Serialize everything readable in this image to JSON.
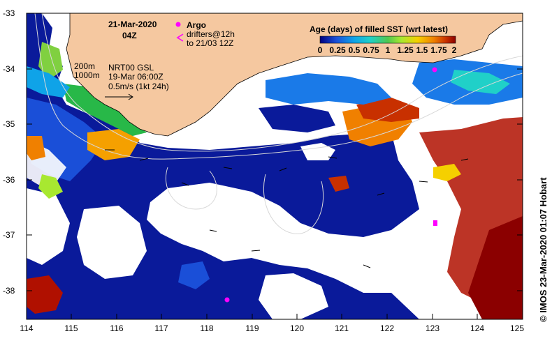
{
  "map": {
    "date": "21-Mar-2020",
    "time": "04Z",
    "argo_label": "Argo",
    "drifters_line1": "drifters@12h",
    "drifters_line2": "to 21/03 12Z",
    "isobath_1": "200m",
    "isobath_2": "1000m",
    "product_line1": "NRT00 GSL",
    "product_line2": "19-Mar 06:00Z",
    "product_line3": "0.5m/s (1kt 24h)",
    "credit": "© IMOS 23-Mar-2020 01:07 Hobart"
  },
  "colorbar": {
    "title": "Age (days) of filled SST (wrt latest)",
    "ticks": [
      "0",
      "0.25",
      "0.5",
      "0.75",
      "1",
      "1.25",
      "1.5",
      "1.75",
      "2"
    ],
    "colors": [
      "#000080",
      "#1a4fd8",
      "#0fa3e8",
      "#20d0c8",
      "#50c850",
      "#a8e830",
      "#f5d000",
      "#f08000",
      "#c83000",
      "#8b0000"
    ]
  },
  "axes": {
    "x_ticks": [
      "114",
      "115",
      "116",
      "117",
      "118",
      "119",
      "120",
      "121",
      "122",
      "123",
      "124",
      "125"
    ],
    "y_ticks": [
      "-33",
      "-34",
      "-35",
      "-36",
      "-37",
      "-38"
    ]
  },
  "colors": {
    "land": "#f5c8a0",
    "no_data": "#ffffff",
    "argo": "#ff00ff"
  }
}
